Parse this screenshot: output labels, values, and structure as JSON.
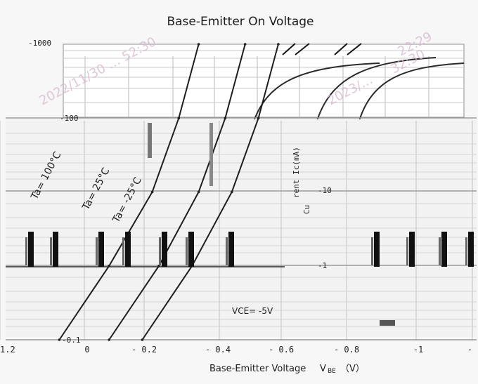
{
  "chart_data": {
    "type": "line",
    "title": "Base-Emitter On Voltage",
    "xlabel": "Base-Emitter Voltage",
    "xlabel_symbol": "V",
    "xlabel_subscript": "BE",
    "xlabel_unit": "（V）",
    "ylabel": "rent   Ic(mA)",
    "ylabel_fragment": "Cu",
    "x_ticks": [
      "1.2",
      "0",
      "- 0.2",
      "- 0.4",
      "- 0.6",
      "- 0.8",
      "-1",
      "-"
    ],
    "y_ticks": [
      "-1000",
      "-100",
      "-10",
      "-1",
      "-0.1"
    ],
    "xlim": [
      0,
      -1.0
    ],
    "ylim": [
      -0.1,
      -1000
    ],
    "y_scale": "log",
    "grid": true,
    "annotation": "VCE= -5V",
    "series": [
      {
        "name": "Ta= 100°C",
        "x": [
          -0.2,
          -0.35,
          -0.48,
          -0.56,
          -0.62
        ],
        "y": [
          -0.1,
          -1,
          -10,
          -100,
          -1000
        ]
      },
      {
        "name": "Ta= 25°C",
        "x": [
          -0.35,
          -0.5,
          -0.62,
          -0.7,
          -0.76
        ],
        "y": [
          -0.1,
          -1,
          -10,
          -100,
          -1000
        ]
      },
      {
        "name": "Ta= -25°C",
        "x": [
          -0.45,
          -0.6,
          -0.72,
          -0.8,
          -0.86
        ],
        "y": [
          -0.1,
          -1,
          -10,
          -100,
          -1000
        ]
      }
    ],
    "watermarks": [
      "2022/11/30 … 52:30",
      "32:30",
      "2023/…",
      "22:29"
    ]
  }
}
